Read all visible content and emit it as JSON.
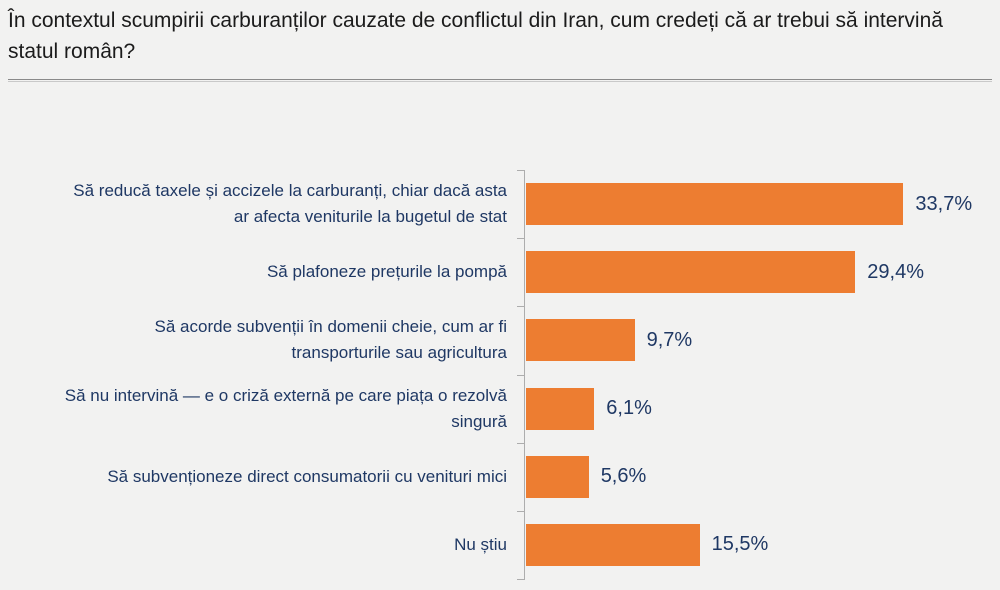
{
  "title": "În contextul scumpirii carburanților cauzate de conflictul din Iran, cum credeți că ar trebui să intervină statul român?",
  "chart_data": {
    "type": "bar",
    "orientation": "horizontal",
    "title": "În contextul scumpirii carburanților cauzate de conflictul din Iran, cum credeți că ar trebui să intervină statul român?",
    "categories": [
      "Să reducă taxele și accizele la carburanți, chiar dacă asta ar afecta veniturile la bugetul de stat",
      "Să plafoneze prețurile la pompă",
      "Să acorde subvenții în domenii cheie, cum ar fi transporturile sau agricultura",
      "Să nu intervină — e o criză externă pe care piața o rezolvă singură",
      "Să subvenționeze direct consumatorii cu venituri mici",
      "Nu știu"
    ],
    "values": [
      33.7,
      29.4,
      9.7,
      6.1,
      5.6,
      15.5
    ],
    "value_labels": [
      "33,7%",
      "29,4%",
      "9,7%",
      "6,1%",
      "5,6%",
      "15,5%"
    ],
    "xlabel": "",
    "ylabel": "",
    "grid": false,
    "legend": "none",
    "colors": {
      "bar": "#ed7d31",
      "labels": "#1f3864",
      "axis": "#adadad",
      "title": "#1b1b1b",
      "background": "#f2f2f1"
    }
  }
}
